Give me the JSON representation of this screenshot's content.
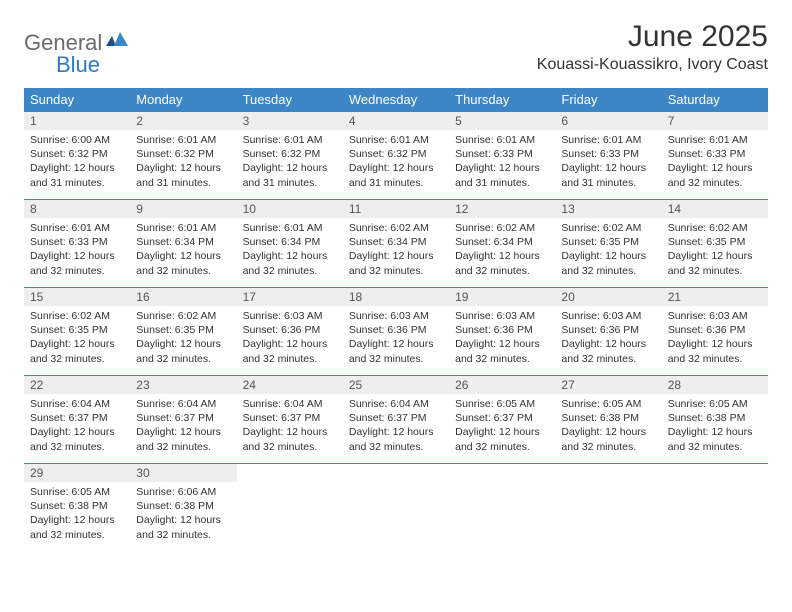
{
  "logo": {
    "general": "General",
    "blue": "Blue"
  },
  "title": "June 2025",
  "location": "Kouassi-Kouassikro, Ivory Coast",
  "colors": {
    "header_bg": "#3d86c6",
    "header_text": "#ffffff",
    "daynum_bg": "#eeeeee",
    "border": "#3d86c6",
    "logo_gray": "#6b6b6b",
    "logo_blue": "#2f78c2"
  },
  "weekdays": [
    "Sunday",
    "Monday",
    "Tuesday",
    "Wednesday",
    "Thursday",
    "Friday",
    "Saturday"
  ],
  "weeks": [
    [
      {
        "n": "1",
        "sr": "Sunrise: 6:00 AM",
        "ss": "Sunset: 6:32 PM",
        "dl1": "Daylight: 12 hours",
        "dl2": "and 31 minutes."
      },
      {
        "n": "2",
        "sr": "Sunrise: 6:01 AM",
        "ss": "Sunset: 6:32 PM",
        "dl1": "Daylight: 12 hours",
        "dl2": "and 31 minutes."
      },
      {
        "n": "3",
        "sr": "Sunrise: 6:01 AM",
        "ss": "Sunset: 6:32 PM",
        "dl1": "Daylight: 12 hours",
        "dl2": "and 31 minutes."
      },
      {
        "n": "4",
        "sr": "Sunrise: 6:01 AM",
        "ss": "Sunset: 6:32 PM",
        "dl1": "Daylight: 12 hours",
        "dl2": "and 31 minutes."
      },
      {
        "n": "5",
        "sr": "Sunrise: 6:01 AM",
        "ss": "Sunset: 6:33 PM",
        "dl1": "Daylight: 12 hours",
        "dl2": "and 31 minutes."
      },
      {
        "n": "6",
        "sr": "Sunrise: 6:01 AM",
        "ss": "Sunset: 6:33 PM",
        "dl1": "Daylight: 12 hours",
        "dl2": "and 31 minutes."
      },
      {
        "n": "7",
        "sr": "Sunrise: 6:01 AM",
        "ss": "Sunset: 6:33 PM",
        "dl1": "Daylight: 12 hours",
        "dl2": "and 32 minutes."
      }
    ],
    [
      {
        "n": "8",
        "sr": "Sunrise: 6:01 AM",
        "ss": "Sunset: 6:33 PM",
        "dl1": "Daylight: 12 hours",
        "dl2": "and 32 minutes."
      },
      {
        "n": "9",
        "sr": "Sunrise: 6:01 AM",
        "ss": "Sunset: 6:34 PM",
        "dl1": "Daylight: 12 hours",
        "dl2": "and 32 minutes."
      },
      {
        "n": "10",
        "sr": "Sunrise: 6:01 AM",
        "ss": "Sunset: 6:34 PM",
        "dl1": "Daylight: 12 hours",
        "dl2": "and 32 minutes."
      },
      {
        "n": "11",
        "sr": "Sunrise: 6:02 AM",
        "ss": "Sunset: 6:34 PM",
        "dl1": "Daylight: 12 hours",
        "dl2": "and 32 minutes."
      },
      {
        "n": "12",
        "sr": "Sunrise: 6:02 AM",
        "ss": "Sunset: 6:34 PM",
        "dl1": "Daylight: 12 hours",
        "dl2": "and 32 minutes."
      },
      {
        "n": "13",
        "sr": "Sunrise: 6:02 AM",
        "ss": "Sunset: 6:35 PM",
        "dl1": "Daylight: 12 hours",
        "dl2": "and 32 minutes."
      },
      {
        "n": "14",
        "sr": "Sunrise: 6:02 AM",
        "ss": "Sunset: 6:35 PM",
        "dl1": "Daylight: 12 hours",
        "dl2": "and 32 minutes."
      }
    ],
    [
      {
        "n": "15",
        "sr": "Sunrise: 6:02 AM",
        "ss": "Sunset: 6:35 PM",
        "dl1": "Daylight: 12 hours",
        "dl2": "and 32 minutes."
      },
      {
        "n": "16",
        "sr": "Sunrise: 6:02 AM",
        "ss": "Sunset: 6:35 PM",
        "dl1": "Daylight: 12 hours",
        "dl2": "and 32 minutes."
      },
      {
        "n": "17",
        "sr": "Sunrise: 6:03 AM",
        "ss": "Sunset: 6:36 PM",
        "dl1": "Daylight: 12 hours",
        "dl2": "and 32 minutes."
      },
      {
        "n": "18",
        "sr": "Sunrise: 6:03 AM",
        "ss": "Sunset: 6:36 PM",
        "dl1": "Daylight: 12 hours",
        "dl2": "and 32 minutes."
      },
      {
        "n": "19",
        "sr": "Sunrise: 6:03 AM",
        "ss": "Sunset: 6:36 PM",
        "dl1": "Daylight: 12 hours",
        "dl2": "and 32 minutes."
      },
      {
        "n": "20",
        "sr": "Sunrise: 6:03 AM",
        "ss": "Sunset: 6:36 PM",
        "dl1": "Daylight: 12 hours",
        "dl2": "and 32 minutes."
      },
      {
        "n": "21",
        "sr": "Sunrise: 6:03 AM",
        "ss": "Sunset: 6:36 PM",
        "dl1": "Daylight: 12 hours",
        "dl2": "and 32 minutes."
      }
    ],
    [
      {
        "n": "22",
        "sr": "Sunrise: 6:04 AM",
        "ss": "Sunset: 6:37 PM",
        "dl1": "Daylight: 12 hours",
        "dl2": "and 32 minutes."
      },
      {
        "n": "23",
        "sr": "Sunrise: 6:04 AM",
        "ss": "Sunset: 6:37 PM",
        "dl1": "Daylight: 12 hours",
        "dl2": "and 32 minutes."
      },
      {
        "n": "24",
        "sr": "Sunrise: 6:04 AM",
        "ss": "Sunset: 6:37 PM",
        "dl1": "Daylight: 12 hours",
        "dl2": "and 32 minutes."
      },
      {
        "n": "25",
        "sr": "Sunrise: 6:04 AM",
        "ss": "Sunset: 6:37 PM",
        "dl1": "Daylight: 12 hours",
        "dl2": "and 32 minutes."
      },
      {
        "n": "26",
        "sr": "Sunrise: 6:05 AM",
        "ss": "Sunset: 6:37 PM",
        "dl1": "Daylight: 12 hours",
        "dl2": "and 32 minutes."
      },
      {
        "n": "27",
        "sr": "Sunrise: 6:05 AM",
        "ss": "Sunset: 6:38 PM",
        "dl1": "Daylight: 12 hours",
        "dl2": "and 32 minutes."
      },
      {
        "n": "28",
        "sr": "Sunrise: 6:05 AM",
        "ss": "Sunset: 6:38 PM",
        "dl1": "Daylight: 12 hours",
        "dl2": "and 32 minutes."
      }
    ],
    [
      {
        "n": "29",
        "sr": "Sunrise: 6:05 AM",
        "ss": "Sunset: 6:38 PM",
        "dl1": "Daylight: 12 hours",
        "dl2": "and 32 minutes."
      },
      {
        "n": "30",
        "sr": "Sunrise: 6:06 AM",
        "ss": "Sunset: 6:38 PM",
        "dl1": "Daylight: 12 hours",
        "dl2": "and 32 minutes."
      },
      {
        "empty": true
      },
      {
        "empty": true
      },
      {
        "empty": true
      },
      {
        "empty": true
      },
      {
        "empty": true
      }
    ]
  ]
}
